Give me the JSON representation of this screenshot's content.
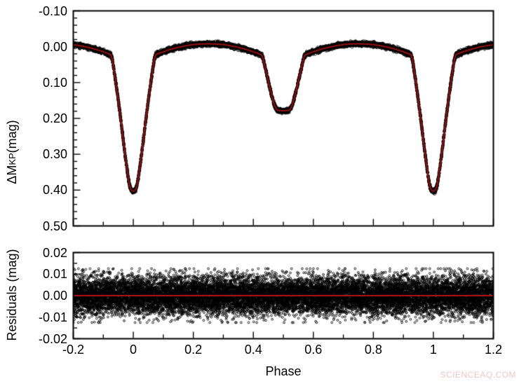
{
  "watermark": "SCIENCEAQ.COM",
  "colors": {
    "background": "#ffffff",
    "frame": "#000000",
    "data_points": "#000000",
    "model_line": "#991111",
    "residual_zero_line": "#b31414",
    "watermark_text": "#f4c6c6"
  },
  "chart_data": [
    {
      "id": "light-curve-panel",
      "type": "scatter",
      "ylabel_prefix": "ΔM",
      "ylabel_subscript": "KP",
      "ylabel_suffix": " (mag)",
      "xlim": [
        -0.2,
        1.2
      ],
      "ylim": [
        0.5,
        -0.1
      ],
      "y_axis_inverted": true,
      "grid": false,
      "yticks": {
        "values": [
          -0.1,
          0.0,
          0.1,
          0.2,
          0.3,
          0.4,
          0.5
        ],
        "labels": [
          "-0.10",
          "0.00",
          "0.10",
          "0.20",
          "0.30",
          "0.40",
          "0.50"
        ],
        "minor_step": 0.02
      },
      "xticks": {
        "values": [
          -0.2,
          0,
          0.2,
          0.4,
          0.6,
          0.8,
          1,
          1.2
        ],
        "labels_shown": false,
        "minor_step": 0.1
      },
      "scatter": {
        "sigma_mag": 0.0032,
        "n_points": 9000,
        "color": "#000000"
      },
      "features": {
        "primary_eclipse": {
          "phase": 0.0,
          "depth_mag": 0.4
        },
        "secondary_eclipse": {
          "phase": 0.5,
          "depth_mag": 0.18
        },
        "out_of_eclipse_max_brightness_mag": -0.008,
        "eclipse_shoulder_mag": 0.022
      },
      "model_curve": {
        "phase": [
          -0.2,
          -0.175,
          -0.15,
          -0.125,
          -0.1,
          -0.075,
          -0.07,
          -0.06,
          -0.05,
          -0.04,
          -0.03,
          -0.022,
          -0.016,
          -0.012,
          -0.008,
          -0.004,
          0,
          0.004,
          0.008,
          0.012,
          0.016,
          0.022,
          0.03,
          0.04,
          0.05,
          0.06,
          0.07,
          0.075,
          0.1,
          0.125,
          0.15,
          0.175,
          0.2,
          0.225,
          0.25,
          0.275,
          0.3,
          0.325,
          0.35,
          0.375,
          0.4,
          0.425,
          0.43,
          0.435,
          0.445,
          0.455,
          0.465,
          0.47,
          0.474,
          0.478,
          0.484,
          0.5,
          0.516,
          0.522,
          0.526,
          0.53,
          0.535,
          0.545,
          0.555,
          0.565,
          0.57,
          0.575,
          0.6,
          0.625,
          0.65,
          0.675,
          0.7,
          0.725,
          0.75,
          0.775,
          0.8,
          0.825,
          0.85,
          0.875,
          0.9,
          0.925,
          0.93,
          0.94,
          0.95,
          0.96,
          0.97,
          0.978,
          0.984,
          0.988,
          0.992,
          0.996,
          1.0,
          1.004,
          1.008,
          1.012,
          1.016,
          1.022,
          1.03,
          1.04,
          1.05,
          1.06,
          1.07,
          1.075,
          1.1,
          1.125,
          1.15,
          1.175,
          1.2
        ],
        "mag": [
          -0.0056,
          -0.0025,
          0.0018,
          0.0073,
          0.014,
          0.022,
          0.035,
          0.09,
          0.15,
          0.215,
          0.285,
          0.335,
          0.37,
          0.388,
          0.398,
          0.402,
          0.403,
          0.402,
          0.398,
          0.388,
          0.37,
          0.335,
          0.285,
          0.215,
          0.15,
          0.09,
          0.035,
          0.022,
          0.014,
          0.0073,
          0.0018,
          -0.0025,
          -0.006,
          -0.0075,
          -0.008,
          -0.0075,
          -0.006,
          -0.0025,
          0.0018,
          0.0073,
          0.014,
          0.022,
          0.026,
          0.042,
          0.078,
          0.115,
          0.148,
          0.162,
          0.17,
          0.1755,
          0.178,
          0.1785,
          0.178,
          0.1755,
          0.17,
          0.162,
          0.148,
          0.115,
          0.078,
          0.042,
          0.026,
          0.022,
          0.014,
          0.0073,
          0.0018,
          -0.0025,
          -0.006,
          -0.0075,
          -0.008,
          -0.0075,
          -0.006,
          -0.0025,
          0.0018,
          0.0073,
          0.014,
          0.022,
          0.035,
          0.09,
          0.15,
          0.215,
          0.285,
          0.335,
          0.37,
          0.388,
          0.398,
          0.402,
          0.403,
          0.402,
          0.398,
          0.388,
          0.37,
          0.335,
          0.285,
          0.215,
          0.15,
          0.09,
          0.035,
          0.022,
          0.014,
          0.0073,
          0.0018,
          -0.0025,
          -0.0056
        ]
      }
    },
    {
      "id": "residuals-panel",
      "type": "scatter",
      "ylabel": "Residuals (mag)",
      "xlabel": "Phase",
      "xlim": [
        -0.2,
        1.2
      ],
      "ylim": [
        -0.02,
        0.02
      ],
      "grid": false,
      "yticks": {
        "values": [
          0.02,
          0.01,
          0.0,
          -0.01,
          -0.02
        ],
        "labels": [
          "0.02",
          "0.01",
          "0.00",
          "-0.01",
          "-0.02"
        ],
        "minor_step": 0.005
      },
      "xticks": {
        "values": [
          -0.2,
          0,
          0.2,
          0.4,
          0.6,
          0.8,
          1,
          1.2
        ],
        "labels": [
          "-0.2",
          "0",
          "0.2",
          "0.4",
          "0.6",
          "0.8",
          "1",
          "1.2"
        ],
        "minor_step": 0.1
      },
      "zero_line_mag": 0.0,
      "scatter": {
        "sigma_mag": 0.0045,
        "max_abs_mag": 0.0125,
        "n_points": 15000,
        "color": "#000000"
      }
    }
  ]
}
